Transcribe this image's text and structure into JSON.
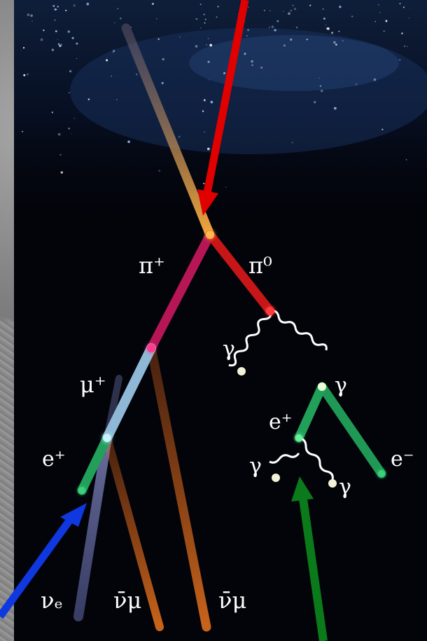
{
  "labels": {
    "pi_plus": "π⁺",
    "pi_zero": "π⁰",
    "mu_plus": "μ⁺",
    "e_plus_left": "e⁺",
    "e_plus_right": "e⁺",
    "e_minus": "e⁻",
    "gamma_1": "γ",
    "gamma_2": "γ",
    "gamma_3": "γ",
    "gamma_4": "γ",
    "nu_e": "νₑ",
    "nu_mu_bar_1": "ν̄μ",
    "nu_mu_bar_2": "ν̄μ"
  },
  "colors": {
    "incoming": "#e39a3a",
    "pi_plus_track": "#c0185a",
    "pi_zero_track": "#d11818",
    "mu_plus_track": "#8fb8d6",
    "positron_track": "#21a05a",
    "nu_e_track": "#7f86c8",
    "nu_mu_track": "#d8621c",
    "photon_line": "#ffffff",
    "red_arrow": "#e00000",
    "blue_arrow": "#1038e0",
    "green_arrow": "#0a7a1a"
  }
}
